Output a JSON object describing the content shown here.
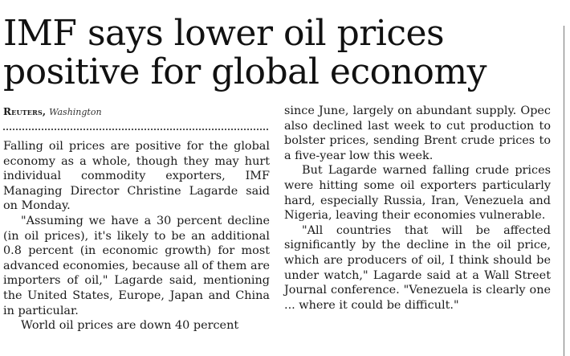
{
  "article": {
    "headline": "IMF says lower oil prices positive for global economy",
    "byline": {
      "agency": "Reuters,",
      "city": "Washington"
    },
    "column1": [
      "Falling oil prices are positive for the global economy as a whole, though they may hurt individual commodity exporters, IMF Managing Director Christine Lagarde said on Monday.",
      "\"Assuming we have a 30 percent decline (in oil prices), it's likely to be an additional 0.8 percent (in economic growth) for most advanced economies, because all of them are importers of oil,\" Lagarde said, mentioning the United States, Europe, Japan and China in particular.",
      "World oil prices are down 40 percent"
    ],
    "column2": [
      "since June, largely on abundant supply. Opec also declined last week to cut production to bolster prices, sending Brent crude prices to a five-year low this week.",
      "But Lagarde warned falling crude prices were hitting some oil exporters particularly hard, especially Russia, Iran, Venezuela and Nigeria, leaving their economies vulnerable.",
      "\"All countries that will be affected significantly by the decline in the oil price, which are producers of oil, I think should be under watch,\" Lagarde said at a Wall Street Journal conference. \"Venezuela is clearly one ... where it could be difficult.\""
    ]
  }
}
